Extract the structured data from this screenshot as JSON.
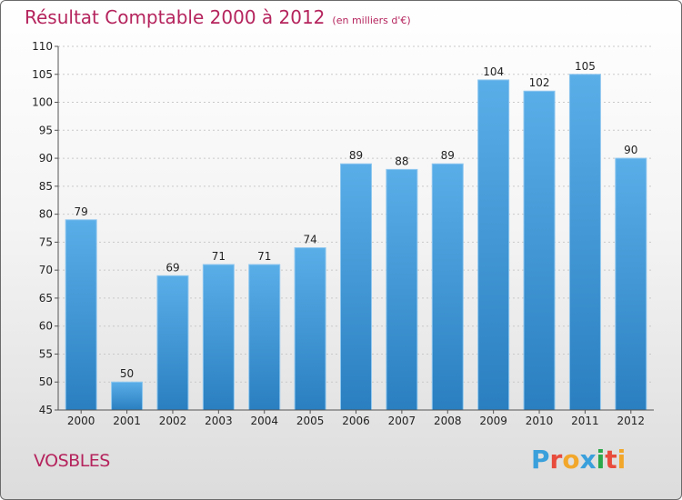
{
  "title": "Résultat Comptable 2000 à 2012",
  "subtitle": "(en milliers d'€)",
  "commune": "VOSBLES",
  "logo": {
    "letters": [
      "P",
      "r",
      "o",
      "x",
      "i",
      "t",
      "i"
    ],
    "colors": [
      "#3aa0dc",
      "#e84c3d",
      "#f2a72b",
      "#3aa0dc",
      "#2aa84a",
      "#e84c3d",
      "#f2a72b"
    ]
  },
  "colors": {
    "bar_top": "#5aaee8",
    "bar_bottom": "#2a7fc0",
    "accent": "#b5245d"
  },
  "chart_data": {
    "type": "bar",
    "categories": [
      "2000",
      "2001",
      "2002",
      "2003",
      "2004",
      "2005",
      "2006",
      "2007",
      "2008",
      "2009",
      "2010",
      "2011",
      "2012"
    ],
    "values": [
      79,
      50,
      69,
      71,
      71,
      74,
      89,
      88,
      89,
      104,
      102,
      105,
      90
    ],
    "ylim": [
      45,
      110
    ],
    "yticks": [
      45,
      50,
      55,
      60,
      65,
      70,
      75,
      80,
      85,
      90,
      95,
      100,
      105,
      110
    ],
    "grid": true,
    "xlabel": "",
    "ylabel": ""
  }
}
